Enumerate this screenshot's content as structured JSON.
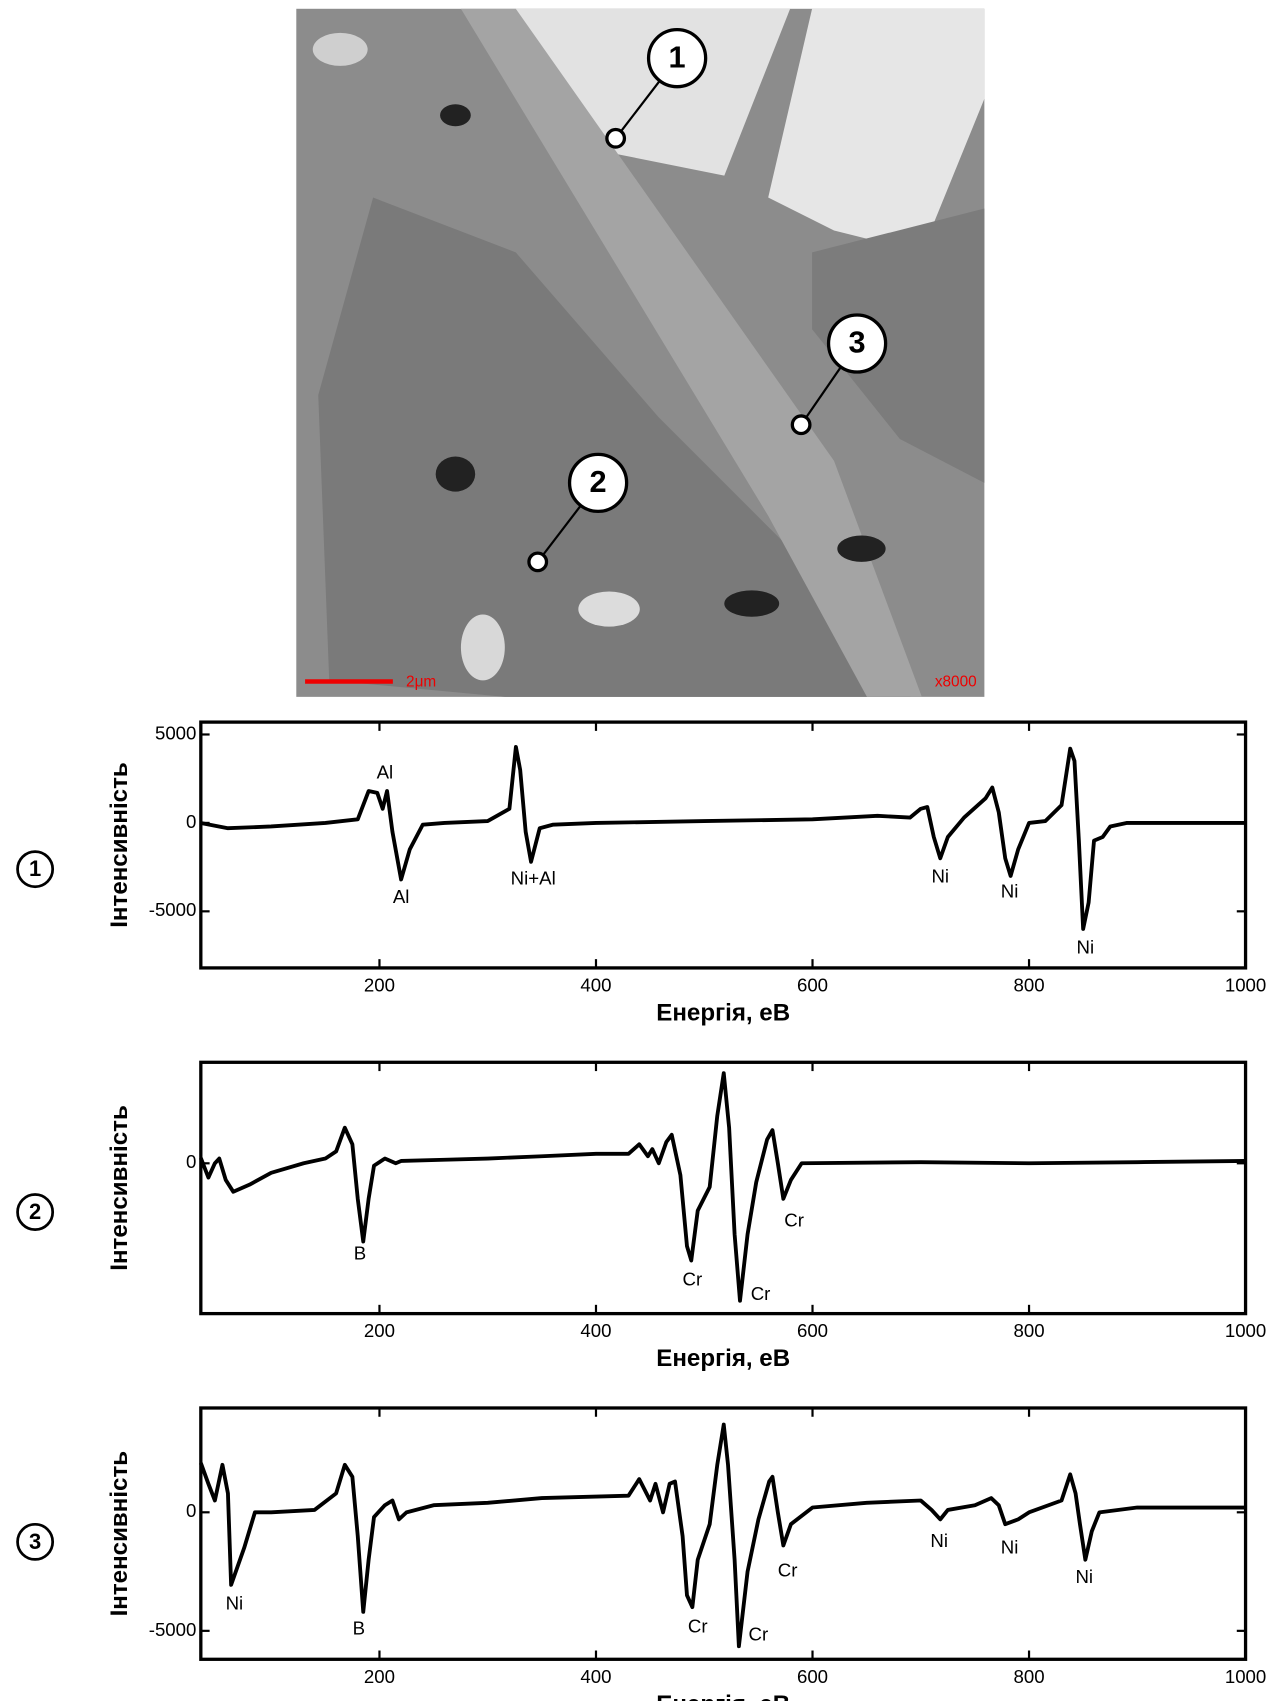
{
  "image": {
    "markers": [
      "1",
      "2",
      "3"
    ],
    "scale_bar": "2μm",
    "magnification": "x8000"
  },
  "chart_data": [
    {
      "type": "line",
      "label": "1",
      "xlabel": "Енергія, еВ",
      "ylabel": "Інтенсивність",
      "xlim": [
        35,
        1000
      ],
      "ylim": [
        -8200,
        5700
      ],
      "xticks": [
        200,
        400,
        600,
        800,
        1000
      ],
      "yticks": [
        -5000,
        0,
        5000
      ],
      "color": "#000000",
      "x": [
        35,
        60,
        100,
        150,
        180,
        190,
        198,
        203,
        207,
        212,
        220,
        228,
        240,
        260,
        300,
        320,
        326,
        330,
        335,
        340,
        348,
        360,
        400,
        500,
        600,
        660,
        690,
        700,
        706,
        712,
        718,
        725,
        740,
        760,
        766,
        772,
        778,
        783,
        790,
        800,
        815,
        830,
        838,
        842,
        846,
        850,
        855,
        860,
        868,
        875,
        890,
        950,
        1000
      ],
      "values": [
        0,
        -300,
        -200,
        0,
        200,
        1800,
        1700,
        800,
        1800,
        -500,
        -3200,
        -1500,
        -100,
        0,
        100,
        800,
        4300,
        3000,
        -500,
        -2200,
        -300,
        -100,
        0,
        100,
        200,
        400,
        300,
        800,
        900,
        -800,
        -2000,
        -800,
        300,
        1400,
        2000,
        600,
        -2000,
        -3000,
        -1500,
        0,
        100,
        1000,
        4200,
        3500,
        -1000,
        -6000,
        -4500,
        -1000,
        -800,
        -200,
        0,
        0,
        0
      ],
      "annotations": [
        {
          "text": "Al",
          "x": 205,
          "y": 2800
        },
        {
          "text": "Al",
          "x": 220,
          "y": -4250
        },
        {
          "text": "Ni+Al",
          "x": 342,
          "y": -3200
        },
        {
          "text": "Ni",
          "x": 718,
          "y": -3100
        },
        {
          "text": "Ni",
          "x": 782,
          "y": -3950
        },
        {
          "text": "Ni",
          "x": 852,
          "y": -7100
        }
      ]
    },
    {
      "type": "line",
      "label": "2",
      "xlabel": "Енергія, еВ",
      "ylabel": "Інтенсивність",
      "xlim": [
        35,
        1000
      ],
      "ylim": [
        -6340,
        4260
      ],
      "xticks": [
        200,
        400,
        600,
        800,
        1000
      ],
      "yticks": [
        0
      ],
      "color": "#000000",
      "x": [
        35,
        42,
        48,
        52,
        58,
        65,
        80,
        100,
        130,
        150,
        160,
        168,
        175,
        180,
        185,
        190,
        195,
        205,
        215,
        220,
        260,
        300,
        350,
        400,
        430,
        440,
        448,
        452,
        458,
        465,
        470,
        478,
        484,
        488,
        494,
        505,
        512,
        518,
        523,
        528,
        533,
        540,
        548,
        558,
        563,
        568,
        573,
        580,
        590,
        700,
        800,
        900,
        1000
      ],
      "values": [
        230,
        -600,
        0,
        200,
        -700,
        -1200,
        -900,
        -400,
        0,
        200,
        500,
        1500,
        800,
        -1500,
        -3300,
        -1500,
        -100,
        200,
        0,
        100,
        150,
        200,
        300,
        400,
        400,
        800,
        300,
        600,
        0,
        900,
        1200,
        -500,
        -3500,
        -4100,
        -2000,
        -1000,
        2000,
        3800,
        1500,
        -3000,
        -5800,
        -3000,
        -800,
        1000,
        1400,
        0,
        -1500,
        -700,
        0,
        50,
        0,
        50,
        100
      ],
      "annotations": [
        {
          "text": "B",
          "x": 182,
          "y": -3840
        },
        {
          "text": "Cr",
          "x": 489,
          "y": -4950
        },
        {
          "text": "Cr",
          "x": 552,
          "y": -5560
        },
        {
          "text": "Cr",
          "x": 583,
          "y": -2450
        }
      ]
    },
    {
      "type": "line",
      "label": "3",
      "xlabel": "Енергія, еВ",
      "ylabel": "Інтенсивність",
      "xlim": [
        35,
        1000
      ],
      "ylim": [
        -6200,
        4400
      ],
      "xticks": [
        200,
        400,
        600,
        800,
        1000
      ],
      "yticks": [
        -5000,
        0
      ],
      "color": "#000000",
      "x": [
        35,
        42,
        48,
        55,
        60,
        63,
        75,
        85,
        100,
        140,
        160,
        168,
        175,
        180,
        185,
        190,
        195,
        205,
        212,
        218,
        225,
        250,
        300,
        350,
        430,
        440,
        450,
        455,
        462,
        468,
        473,
        480,
        484,
        489,
        494,
        505,
        512,
        518,
        522,
        528,
        532,
        540,
        550,
        560,
        563,
        568,
        573,
        580,
        600,
        650,
        700,
        710,
        718,
        725,
        750,
        765,
        772,
        778,
        790,
        800,
        830,
        838,
        843,
        847,
        852,
        858,
        865,
        900,
        950,
        1000
      ],
      "values": [
        2080,
        1200,
        500,
        2000,
        800,
        -3060,
        -1500,
        0,
        0,
        100,
        800,
        2000,
        1500,
        -1000,
        -4200,
        -2000,
        -200,
        300,
        500,
        -300,
        0,
        300,
        400,
        600,
        700,
        1400,
        500,
        1200,
        0,
        1200,
        1300,
        -1000,
        -3500,
        -4000,
        -2000,
        -500,
        2000,
        3700,
        2000,
        -2000,
        -5650,
        -2500,
        -300,
        1300,
        1500,
        0,
        -1400,
        -500,
        200,
        400,
        500,
        100,
        -300,
        100,
        300,
        600,
        300,
        -500,
        -300,
        0,
        500,
        1600,
        800,
        -500,
        -2000,
        -800,
        0,
        200,
        200,
        200
      ],
      "annotations": [
        {
          "text": "Ni",
          "x": 66,
          "y": -3890
        },
        {
          "text": "B",
          "x": 181,
          "y": -4950
        },
        {
          "text": "Cr",
          "x": 494,
          "y": -4860
        },
        {
          "text": "Cr",
          "x": 550,
          "y": -5190
        },
        {
          "text": "Cr",
          "x": 577,
          "y": -2500
        },
        {
          "text": "Ni",
          "x": 717,
          "y": -1250
        },
        {
          "text": "Ni",
          "x": 782,
          "y": -1530
        },
        {
          "text": "Ni",
          "x": 851,
          "y": -2780
        }
      ]
    }
  ]
}
